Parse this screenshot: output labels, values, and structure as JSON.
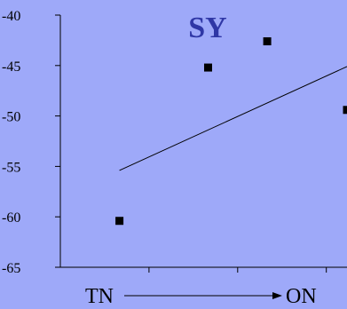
{
  "chart_data": {
    "type": "scatter",
    "title": "SY",
    "xlabel": "",
    "ylabel": "",
    "ylim": [
      -65,
      -40
    ],
    "yticks": [
      -40,
      -45,
      -50,
      -55,
      -60,
      -65
    ],
    "x_axis_labels": {
      "start": "TN",
      "end": "ON"
    },
    "points": [
      {
        "x": 1,
        "y": -60.4
      },
      {
        "x": 2.5,
        "y": -45.2
      },
      {
        "x": 3.5,
        "y": -42.6
      },
      {
        "x": 4.85,
        "y": -49.4
      }
    ],
    "trendline": [
      {
        "x": 1,
        "y": -55.4
      },
      {
        "x": 4.85,
        "y": -45.1
      }
    ],
    "xlim": [
      0,
      4.85
    ],
    "grid": false,
    "legend": "none",
    "colors": {
      "background": "#9EA9F9",
      "title": "#2F37A6",
      "marks": "#000000"
    }
  }
}
